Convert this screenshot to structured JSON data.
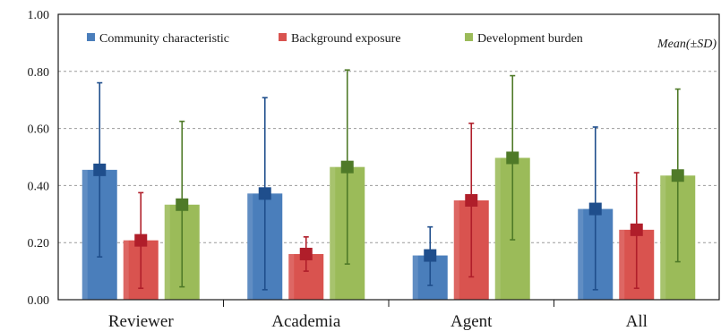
{
  "chart_data": {
    "type": "bar",
    "categories": [
      "Reviewer",
      "Academia",
      "Agent",
      "All"
    ],
    "series": [
      {
        "name": "Community characteristic",
        "color": "#4a7ebb",
        "dark_color": "#1f4e8c",
        "values": [
          0.455,
          0.372,
          0.155,
          0.318
        ],
        "sd_low": [
          0.15,
          0.035,
          0.05,
          0.035
        ],
        "sd_high": [
          0.76,
          0.708,
          0.255,
          0.605
        ]
      },
      {
        "name": "Background exposure",
        "color": "#d9534f",
        "dark_color": "#b01e2a",
        "values": [
          0.208,
          0.16,
          0.348,
          0.245
        ],
        "sd_low": [
          0.04,
          0.1,
          0.08,
          0.04
        ],
        "sd_high": [
          0.375,
          0.22,
          0.618,
          0.445
        ]
      },
      {
        "name": "Development burden",
        "color": "#9bbb59",
        "dark_color": "#4f7a28",
        "values": [
          0.333,
          0.465,
          0.497,
          0.435
        ],
        "sd_low": [
          0.045,
          0.125,
          0.21,
          0.133
        ],
        "sd_high": [
          0.625,
          0.805,
          0.785,
          0.738
        ]
      }
    ],
    "ylim": [
      0,
      1.0
    ],
    "yticks": [
      "0.00",
      "0.20",
      "0.40",
      "0.60",
      "0.80",
      "1.00"
    ],
    "ytick_values": [
      0,
      0.2,
      0.4,
      0.6,
      0.8,
      1.0
    ],
    "annotation": "Mean(±SD)",
    "legend_position": "top",
    "grid": "horizontal-dashed"
  }
}
